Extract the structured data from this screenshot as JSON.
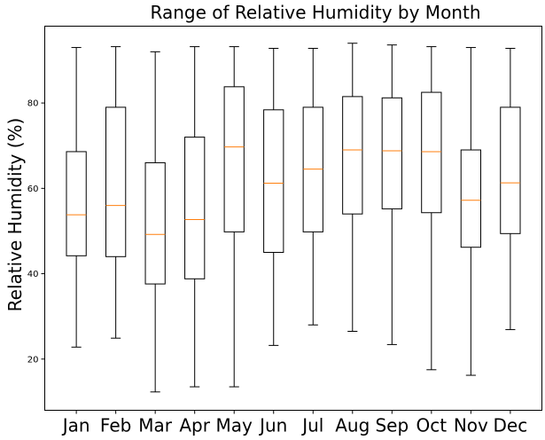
{
  "chart_data": {
    "type": "boxplot",
    "title": "Range of Relative Humidity by Month",
    "xlabel": "",
    "ylabel": "Relative Humidity (%)",
    "ylim": [
      8,
      98
    ],
    "yticks": [
      20,
      40,
      60,
      80
    ],
    "grid": false,
    "legend": "none",
    "colors": {
      "box": "#000000",
      "median": "#ff7f0e",
      "background": "#ffffff"
    },
    "categories": [
      "Jan",
      "Feb",
      "Mar",
      "Apr",
      "May",
      "Jun",
      "Jul",
      "Aug",
      "Sep",
      "Oct",
      "Nov",
      "Dec"
    ],
    "series": [
      {
        "stats": [
          {
            "whislo": 22.8,
            "q1": 44.2,
            "med": 53.8,
            "q3": 68.6,
            "whishi": 93.0
          },
          {
            "whislo": 24.9,
            "q1": 44.0,
            "med": 56.0,
            "q3": 79.0,
            "whishi": 93.2
          },
          {
            "whislo": 12.3,
            "q1": 37.6,
            "med": 49.2,
            "q3": 66.0,
            "whishi": 92.0
          },
          {
            "whislo": 13.5,
            "q1": 38.8,
            "med": 52.7,
            "q3": 72.0,
            "whishi": 93.2
          },
          {
            "whislo": 13.5,
            "q1": 49.8,
            "med": 69.7,
            "q3": 83.8,
            "whishi": 93.2
          },
          {
            "whislo": 23.2,
            "q1": 45.0,
            "med": 61.2,
            "q3": 78.4,
            "whishi": 92.8
          },
          {
            "whislo": 28.0,
            "q1": 49.8,
            "med": 64.5,
            "q3": 79.0,
            "whishi": 92.8
          },
          {
            "whislo": 26.5,
            "q1": 54.0,
            "med": 69.0,
            "q3": 81.5,
            "whishi": 94.0
          },
          {
            "whislo": 23.4,
            "q1": 55.2,
            "med": 68.8,
            "q3": 81.2,
            "whishi": 93.6
          },
          {
            "whislo": 17.5,
            "q1": 54.3,
            "med": 68.6,
            "q3": 82.5,
            "whishi": 93.2
          },
          {
            "whislo": 16.2,
            "q1": 46.2,
            "med": 57.2,
            "q3": 69.0,
            "whishi": 93.0
          },
          {
            "whislo": 26.9,
            "q1": 49.4,
            "med": 61.3,
            "q3": 79.0,
            "whishi": 92.8
          }
        ]
      }
    ]
  }
}
